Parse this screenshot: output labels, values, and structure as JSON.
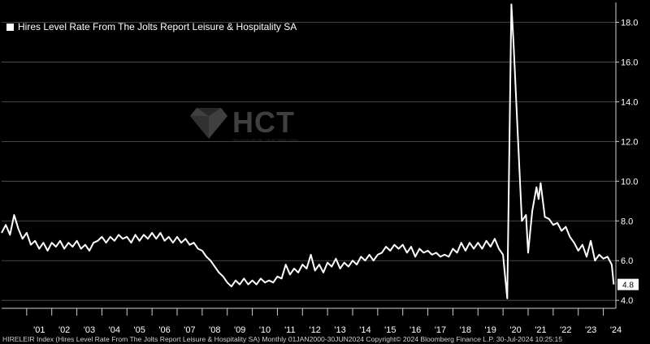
{
  "chart_data": {
    "type": "line",
    "legend": "Hires Level Rate From The Jolts Report Leisure & Hospitality SA",
    "legend_placement": "top-left",
    "grid": true,
    "ylim": [
      3.6,
      19.0
    ],
    "yticks": [
      4.0,
      6.0,
      8.0,
      10.0,
      12.0,
      14.0,
      16.0,
      18.0
    ],
    "ytick_labels": [
      "4.0",
      "6.0",
      "8.0",
      "10.0",
      "12.0",
      "14.0",
      "16.0",
      "18.0"
    ],
    "xtick_labels": [
      "'01",
      "'02",
      "'03",
      "'04",
      "'05",
      "'06",
      "'07",
      "'08",
      "'09",
      "'10",
      "'11",
      "'12",
      "'13",
      "'14",
      "'15",
      "'16",
      "'17",
      "'18",
      "'19",
      "'20",
      "'21",
      "'22",
      "'23",
      "'24"
    ],
    "last_value_label": "4.8",
    "series": [
      {
        "name": "Hires Level Rate From The Jolts Report Leisure & Hospitality SA",
        "color": "#ffffff",
        "points": [
          [
            "2000-01",
            7.4
          ],
          [
            "2000-03",
            7.8
          ],
          [
            "2000-05",
            7.3
          ],
          [
            "2000-07",
            8.3
          ],
          [
            "2000-09",
            7.6
          ],
          [
            "2000-11",
            7.1
          ],
          [
            "2001-01",
            7.4
          ],
          [
            "2001-03",
            6.8
          ],
          [
            "2001-05",
            7.0
          ],
          [
            "2001-07",
            6.6
          ],
          [
            "2001-09",
            6.9
          ],
          [
            "2001-11",
            6.5
          ],
          [
            "2002-01",
            6.9
          ],
          [
            "2002-03",
            6.7
          ],
          [
            "2002-05",
            7.0
          ],
          [
            "2002-07",
            6.6
          ],
          [
            "2002-09",
            6.9
          ],
          [
            "2002-11",
            6.7
          ],
          [
            "2003-01",
            7.0
          ],
          [
            "2003-03",
            6.6
          ],
          [
            "2003-05",
            6.8
          ],
          [
            "2003-07",
            6.5
          ],
          [
            "2003-09",
            6.9
          ],
          [
            "2003-11",
            7.0
          ],
          [
            "2004-01",
            7.2
          ],
          [
            "2004-03",
            6.9
          ],
          [
            "2004-05",
            7.2
          ],
          [
            "2004-07",
            7.0
          ],
          [
            "2004-09",
            7.3
          ],
          [
            "2004-11",
            7.1
          ],
          [
            "2005-01",
            7.2
          ],
          [
            "2005-03",
            6.9
          ],
          [
            "2005-05",
            7.3
          ],
          [
            "2005-07",
            7.0
          ],
          [
            "2005-09",
            7.3
          ],
          [
            "2005-11",
            7.1
          ],
          [
            "2006-01",
            7.4
          ],
          [
            "2006-03",
            7.1
          ],
          [
            "2006-05",
            7.4
          ],
          [
            "2006-07",
            7.0
          ],
          [
            "2006-09",
            7.2
          ],
          [
            "2006-11",
            6.9
          ],
          [
            "2007-01",
            7.2
          ],
          [
            "2007-03",
            6.9
          ],
          [
            "2007-05",
            7.1
          ],
          [
            "2007-07",
            6.8
          ],
          [
            "2007-09",
            6.9
          ],
          [
            "2007-11",
            6.6
          ],
          [
            "2008-01",
            6.5
          ],
          [
            "2008-03",
            6.2
          ],
          [
            "2008-05",
            6.0
          ],
          [
            "2008-07",
            5.7
          ],
          [
            "2008-09",
            5.4
          ],
          [
            "2008-11",
            5.2
          ],
          [
            "2009-01",
            4.9
          ],
          [
            "2009-03",
            4.7
          ],
          [
            "2009-05",
            5.0
          ],
          [
            "2009-07",
            4.8
          ],
          [
            "2009-09",
            5.1
          ],
          [
            "2009-11",
            4.8
          ],
          [
            "2010-01",
            5.0
          ],
          [
            "2010-03",
            4.8
          ],
          [
            "2010-05",
            5.1
          ],
          [
            "2010-07",
            4.9
          ],
          [
            "2010-09",
            5.0
          ],
          [
            "2010-11",
            4.9
          ],
          [
            "2011-01",
            5.2
          ],
          [
            "2011-03",
            5.1
          ],
          [
            "2011-05",
            5.8
          ],
          [
            "2011-07",
            5.3
          ],
          [
            "2011-09",
            5.6
          ],
          [
            "2011-11",
            5.4
          ],
          [
            "2012-01",
            5.8
          ],
          [
            "2012-03",
            5.6
          ],
          [
            "2012-05",
            6.3
          ],
          [
            "2012-07",
            5.5
          ],
          [
            "2012-09",
            5.8
          ],
          [
            "2012-11",
            5.4
          ],
          [
            "2013-01",
            5.9
          ],
          [
            "2013-03",
            5.7
          ],
          [
            "2013-05",
            6.1
          ],
          [
            "2013-07",
            5.6
          ],
          [
            "2013-09",
            5.9
          ],
          [
            "2013-11",
            5.7
          ],
          [
            "2014-01",
            6.0
          ],
          [
            "2014-03",
            5.8
          ],
          [
            "2014-05",
            6.2
          ],
          [
            "2014-07",
            6.0
          ],
          [
            "2014-09",
            6.3
          ],
          [
            "2014-11",
            6.0
          ],
          [
            "2015-01",
            6.3
          ],
          [
            "2015-03",
            6.4
          ],
          [
            "2015-05",
            6.7
          ],
          [
            "2015-07",
            6.5
          ],
          [
            "2015-09",
            6.8
          ],
          [
            "2015-11",
            6.6
          ],
          [
            "2016-01",
            6.8
          ],
          [
            "2016-03",
            6.4
          ],
          [
            "2016-05",
            6.7
          ],
          [
            "2016-07",
            6.2
          ],
          [
            "2016-09",
            6.6
          ],
          [
            "2016-11",
            6.4
          ],
          [
            "2017-01",
            6.5
          ],
          [
            "2017-03",
            6.3
          ],
          [
            "2017-05",
            6.4
          ],
          [
            "2017-07",
            6.2
          ],
          [
            "2017-09",
            6.3
          ],
          [
            "2017-11",
            6.2
          ],
          [
            "2018-01",
            6.6
          ],
          [
            "2018-03",
            6.4
          ],
          [
            "2018-05",
            6.9
          ],
          [
            "2018-07",
            6.5
          ],
          [
            "2018-09",
            6.9
          ],
          [
            "2018-11",
            6.6
          ],
          [
            "2019-01",
            6.9
          ],
          [
            "2019-03",
            6.6
          ],
          [
            "2019-05",
            7.0
          ],
          [
            "2019-07",
            6.7
          ],
          [
            "2019-09",
            7.1
          ],
          [
            "2019-11",
            6.6
          ],
          [
            "2020-01",
            6.3
          ],
          [
            "2020-03",
            4.1
          ],
          [
            "2020-05",
            18.9
          ],
          [
            "2020-06",
            17.0
          ],
          [
            "2020-08",
            12.5
          ],
          [
            "2020-10",
            8.0
          ],
          [
            "2020-12",
            8.3
          ],
          [
            "2021-01",
            6.4
          ],
          [
            "2021-03",
            8.5
          ],
          [
            "2021-05",
            9.7
          ],
          [
            "2021-06",
            9.1
          ],
          [
            "2021-07",
            9.9
          ],
          [
            "2021-09",
            8.2
          ],
          [
            "2021-11",
            8.1
          ],
          [
            "2022-01",
            7.8
          ],
          [
            "2022-03",
            7.9
          ],
          [
            "2022-05",
            7.5
          ],
          [
            "2022-07",
            7.7
          ],
          [
            "2022-09",
            7.2
          ],
          [
            "2022-11",
            6.9
          ],
          [
            "2023-01",
            6.5
          ],
          [
            "2023-03",
            6.8
          ],
          [
            "2023-05",
            6.2
          ],
          [
            "2023-07",
            7.0
          ],
          [
            "2023-09",
            6.0
          ],
          [
            "2023-11",
            6.3
          ],
          [
            "2024-01",
            6.1
          ],
          [
            "2024-03",
            6.2
          ],
          [
            "2024-05",
            5.8
          ],
          [
            "2024-06",
            4.8
          ]
        ]
      }
    ]
  },
  "watermark": {
    "text": "HCT",
    "subtext": "HIỂU ĐÚNG ĐỂ TIN - TIN ĐỂ THÀNH CÔNG"
  },
  "footer": "HIRELEIR Index (Hires Level Rate From The Jolts Report Leisure & Hospitality SA)  Monthly 01JAN2000-30JUN2024  Copyright© 2024 Bloomberg Finance L.P.  30-Jul-2024 10:25:15"
}
